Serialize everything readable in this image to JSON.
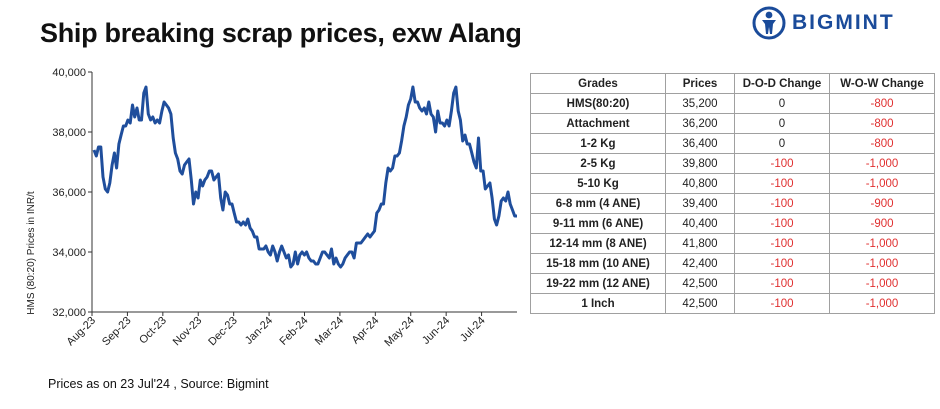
{
  "title": "Ship breaking scrap prices, exw Alang",
  "brand": {
    "name": "BIGMINT",
    "color": "#1a4b9a",
    "icon": "person-globe-icon"
  },
  "footer": "Prices as on 23 Jul'24 , Source: Bigmint",
  "chart_data": {
    "type": "line",
    "ylabel": "HMS (80:20) Prices in INR/t",
    "ylim": [
      32000,
      40000
    ],
    "yticks": [
      "32,000",
      "34,000",
      "36,000",
      "38,000",
      "40,000"
    ],
    "xticks": [
      "Aug-23",
      "Sep-23",
      "Oct-23",
      "Nov-23",
      "Dec-23",
      "Jan-24",
      "Feb-24",
      "Mar-24",
      "Apr-24",
      "May-24",
      "Jun-24",
      "Jul-24"
    ],
    "grid": false,
    "line_color": "#1f4e9c",
    "series": [
      {
        "values": [
          37400,
          37200,
          37500,
          37500,
          36500,
          36100,
          36000,
          36300,
          36900,
          37300,
          36800,
          37600,
          37900,
          38200,
          38200,
          38400,
          38300,
          38900,
          38500,
          38800,
          38400,
          38400,
          39300,
          39500,
          38600,
          38400,
          38500,
          38300,
          38400,
          38300,
          38700,
          39000,
          38900,
          38800,
          38600,
          37800,
          37300,
          37100,
          36700,
          36600,
          36900,
          37000,
          37100,
          36400,
          35600,
          36000,
          35800,
          36400,
          36200,
          36400,
          36500,
          36700,
          36700,
          36400,
          36500,
          36600,
          35800,
          35400,
          36000,
          35900,
          35600,
          35600,
          35300,
          35000,
          35000,
          34900,
          35000,
          34900,
          35100,
          34800,
          34700,
          34500,
          34500,
          34100,
          34100,
          34100,
          34200,
          34000,
          33900,
          34200,
          34000,
          33700,
          34000,
          34200,
          34000,
          33800,
          33900,
          33500,
          33600,
          34000,
          33600,
          33900,
          34000,
          33900,
          34000,
          33800,
          33700,
          33700,
          33600,
          33600,
          33800,
          34000,
          34000,
          33900,
          33800,
          34100,
          33600,
          33800,
          33600,
          33500,
          33600,
          33800,
          33900,
          34000,
          34000,
          33800,
          34300,
          34300,
          34300,
          34400,
          34500,
          34600,
          34500,
          34600,
          34700,
          35300,
          35400,
          35600,
          35600,
          36300,
          36800,
          36700,
          36800,
          37200,
          37200,
          37300,
          37700,
          38200,
          38500,
          38900,
          39100,
          39500,
          39000,
          39000,
          38800,
          38700,
          38800,
          38600,
          39000,
          38600,
          38500,
          38000,
          38700,
          38300,
          38300,
          38200,
          38400,
          38200,
          38700,
          39300,
          39500,
          38700,
          38400,
          37700,
          37900,
          37600,
          37600,
          37300,
          37000,
          36800,
          37800,
          36700,
          36700,
          36100,
          36200,
          36300,
          35800,
          35100,
          34900,
          35200,
          35700,
          35800,
          35700,
          36000,
          35600,
          35400,
          35200,
          35200
        ]
      }
    ]
  },
  "table": {
    "headers": [
      "Grades",
      "Prices",
      "D-O-D Change",
      "W-O-W Change"
    ],
    "rows": [
      [
        "HMS(80:20)",
        "35,200",
        "0",
        "-800"
      ],
      [
        "Attachment",
        "36,200",
        "0",
        "-800"
      ],
      [
        "1-2 Kg",
        "36,400",
        "0",
        "-800"
      ],
      [
        "2-5 Kg",
        "39,800",
        "-100",
        "-1,000"
      ],
      [
        "5-10 Kg",
        "40,800",
        "-100",
        "-1,000"
      ],
      [
        "6-8 mm (4 ANE)",
        "39,400",
        "-100",
        "-900"
      ],
      [
        "9-11 mm (6 ANE)",
        "40,400",
        "-100",
        "-900"
      ],
      [
        "12-14 mm (8 ANE)",
        "41,800",
        "-100",
        "-1,000"
      ],
      [
        "15-18 mm (10 ANE)",
        "42,400",
        "-100",
        "-1,000"
      ],
      [
        "19-22 mm (12 ANE)",
        "42,500",
        "-100",
        "-1,000"
      ],
      [
        "1 Inch",
        "42,500",
        "-100",
        "-1,000"
      ]
    ],
    "negative_color": "#e03030"
  }
}
